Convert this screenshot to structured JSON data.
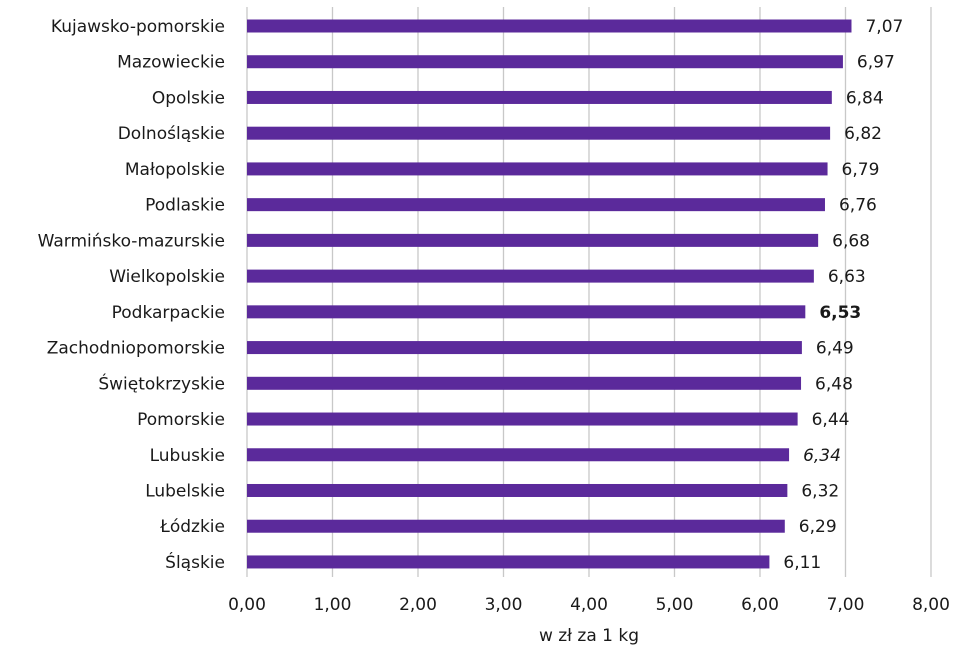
{
  "chart_data": {
    "type": "bar",
    "orientation": "horizontal",
    "categories": [
      "Kujawsko-pomorskie",
      "Mazowieckie",
      "Opolskie",
      "Dolnośląskie",
      "Małopolskie",
      "Podlaskie",
      "Warmińsko-mazurskie",
      "Wielkopolskie",
      "Podkarpackie",
      "Zachodniopomorskie",
      "Świętokrzyskie",
      "Pomorskie",
      "Lubuskie",
      "Lubelskie",
      "Łódzkie",
      "Śląskie"
    ],
    "values": [
      7.07,
      6.97,
      6.84,
      6.82,
      6.79,
      6.76,
      6.68,
      6.63,
      6.53,
      6.49,
      6.48,
      6.44,
      6.34,
      6.32,
      6.29,
      6.11
    ],
    "value_labels": [
      "7,07",
      "6,97",
      "6,84",
      "6,82",
      "6,79",
      "6,76",
      "6,68",
      "6,63",
      "6,53",
      "6,49",
      "6,48",
      "6,44",
      "6,34",
      "6,32",
      "6,29",
      "6,11"
    ],
    "highlighted_category": "Podkarpackie",
    "italic_category": "Lubuskie",
    "xlim": [
      0,
      8
    ],
    "x_ticks": [
      0,
      1,
      2,
      3,
      4,
      5,
      6,
      7,
      8
    ],
    "x_tick_labels": [
      "0,00",
      "1,00",
      "2,00",
      "3,00",
      "4,00",
      "5,00",
      "6,00",
      "7,00",
      "8,00"
    ],
    "xlabel": "w zł za 1 kg",
    "title": "",
    "ylabel": "",
    "grid": "vertical",
    "legend": "none",
    "bar_color": "#5b2a9b"
  }
}
